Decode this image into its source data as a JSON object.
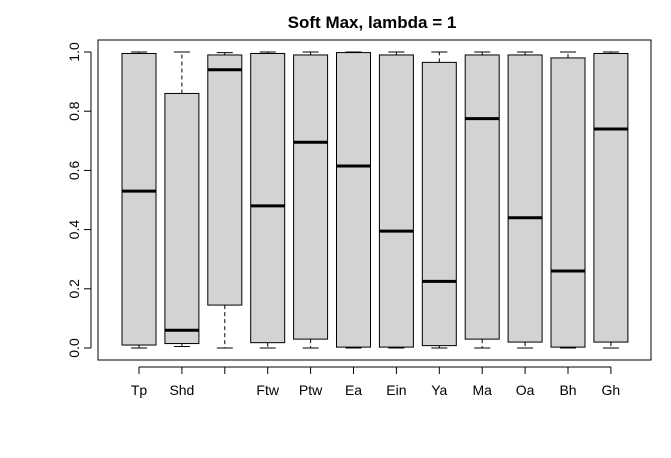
{
  "chart_data": {
    "type": "boxplot",
    "title": "Soft Max, lambda = 1",
    "xlabel": "",
    "ylabel": "",
    "ylim": [
      0.0,
      1.0
    ],
    "yticks": [
      "0.0",
      "0.2",
      "0.4",
      "0.6",
      "0.8",
      "1.0"
    ],
    "categories": [
      "Tp",
      "Shd",
      "",
      "Ftw",
      "Ptw",
      "Ea",
      "Ein",
      "Ya",
      "Ma",
      "Oa",
      "Bh",
      "Gh"
    ],
    "boxes": [
      {
        "label": "Tp",
        "whisker_low": 0.0,
        "q1": 0.01,
        "median": 0.53,
        "q3": 0.995,
        "whisker_high": 1.0
      },
      {
        "label": "Shd",
        "whisker_low": 0.005,
        "q1": 0.015,
        "median": 0.06,
        "q3": 0.86,
        "whisker_high": 1.0
      },
      {
        "label": "",
        "whisker_low": 0.0,
        "q1": 0.145,
        "median": 0.94,
        "q3": 0.99,
        "whisker_high": 0.998
      },
      {
        "label": "Ftw",
        "whisker_low": 0.0,
        "q1": 0.018,
        "median": 0.48,
        "q3": 0.995,
        "whisker_high": 1.0
      },
      {
        "label": "Ptw",
        "whisker_low": 0.0,
        "q1": 0.03,
        "median": 0.695,
        "q3": 0.99,
        "whisker_high": 1.0
      },
      {
        "label": "Ea",
        "whisker_low": 0.0,
        "q1": 0.003,
        "median": 0.615,
        "q3": 0.998,
        "whisker_high": 1.0
      },
      {
        "label": "Ein",
        "whisker_low": 0.0,
        "q1": 0.003,
        "median": 0.395,
        "q3": 0.99,
        "whisker_high": 1.0
      },
      {
        "label": "Ya",
        "whisker_low": 0.0,
        "q1": 0.008,
        "median": 0.225,
        "q3": 0.965,
        "whisker_high": 1.0
      },
      {
        "label": "Ma",
        "whisker_low": 0.0,
        "q1": 0.03,
        "median": 0.775,
        "q3": 0.99,
        "whisker_high": 1.0
      },
      {
        "label": "Oa",
        "whisker_low": 0.0,
        "q1": 0.02,
        "median": 0.44,
        "q3": 0.99,
        "whisker_high": 1.0
      },
      {
        "label": "Bh",
        "whisker_low": 0.0,
        "q1": 0.003,
        "median": 0.26,
        "q3": 0.98,
        "whisker_high": 1.0
      },
      {
        "label": "Gh",
        "whisker_low": 0.0,
        "q1": 0.02,
        "median": 0.74,
        "q3": 0.995,
        "whisker_high": 1.0
      }
    ],
    "box_color": "#d3d3d3",
    "line_color": "#000000",
    "grid": false
  }
}
